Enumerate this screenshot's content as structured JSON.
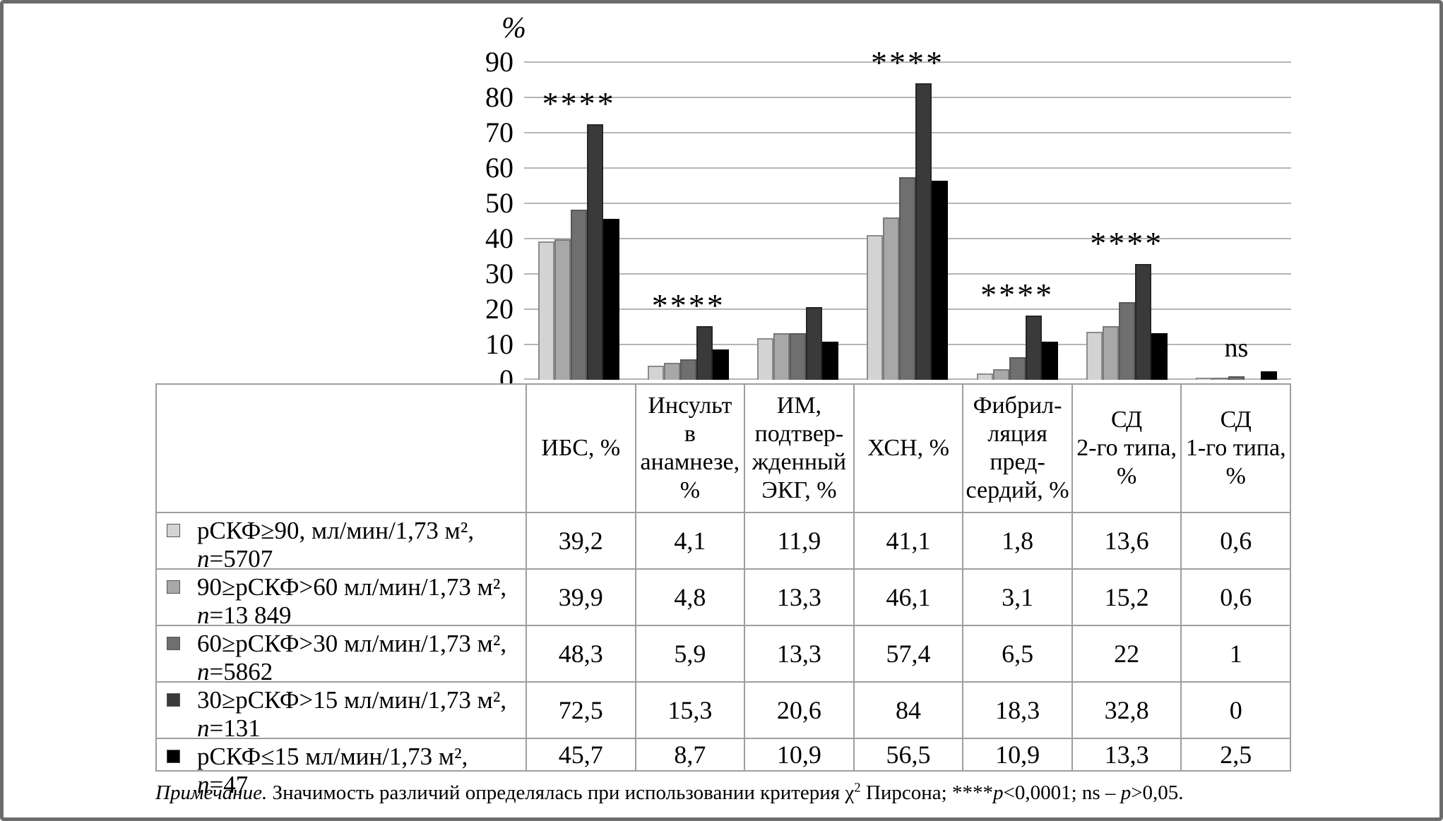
{
  "chart_data": {
    "type": "bar",
    "title": "",
    "ylabel": "%",
    "xlabel": "",
    "ylim": [
      0,
      90
    ],
    "yticks": [
      0,
      10,
      20,
      30,
      40,
      50,
      60,
      70,
      80,
      90
    ],
    "grid": true,
    "legend_position": "table-left",
    "categories": [
      "ИБС, %",
      "Инсульт\nв анамнезе,\n%",
      "ИМ,\nподтвер-\nжденный\nЭКГ, %",
      "ХСН, %",
      "Фибрил-\nляция\nпред-\nсердий, %",
      "СД\n2-го типа, %",
      "СД\n1-го типа, %"
    ],
    "annotations": [
      "****",
      "****",
      "",
      "****",
      "****",
      "****",
      "ns"
    ],
    "series": [
      {
        "name": "рСКФ≥90, мл/мин/1,73 м²,",
        "n_label": "n=5707",
        "two_line": true,
        "color": "#d3d3d3",
        "border": "#8c8c8c",
        "values": [
          39.2,
          4.1,
          11.9,
          41.1,
          1.8,
          13.6,
          0.6
        ]
      },
      {
        "name": "90≥рСКФ>60 мл/мин/1,73 м²,",
        "n_label": "n=13 849",
        "two_line": true,
        "color": "#a8a8a8",
        "border": "#7a7a7a",
        "values": [
          39.9,
          4.8,
          13.3,
          46.1,
          3.1,
          15.2,
          0.6
        ]
      },
      {
        "name": "60≥рСКФ>30 мл/мин/1,73 м²,",
        "n_label": "n=5862",
        "two_line": true,
        "color": "#6f6f6f",
        "border": "#595959",
        "values": [
          48.3,
          5.9,
          13.3,
          57.4,
          6.5,
          22,
          1
        ]
      },
      {
        "name": "30≥рСКФ>15 мл/мин/1,73 м²,",
        "n_label": "n=131",
        "two_line": true,
        "color": "#3a3a3a",
        "border": "#262626",
        "values": [
          72.5,
          15.3,
          20.6,
          84,
          18.3,
          32.8,
          0
        ]
      },
      {
        "name": "рСКФ≤15 мл/мин/1,73 м²,",
        "n_label": "n=47",
        "two_line": false,
        "color": "#000000",
        "border": "#000000",
        "values": [
          45.7,
          8.7,
          10.9,
          56.5,
          10.9,
          13.3,
          2.5
        ]
      }
    ],
    "table_values": [
      [
        "39,2",
        "4,1",
        "11,9",
        "41,1",
        "1,8",
        "13,6",
        "0,6"
      ],
      [
        "39,9",
        "4,8",
        "13,3",
        "46,1",
        "3,1",
        "15,2",
        "0,6"
      ],
      [
        "48,3",
        "5,9",
        "13,3",
        "57,4",
        "6,5",
        "22",
        "1"
      ],
      [
        "72,5",
        "15,3",
        "20,6",
        "84",
        "18,3",
        "32,8",
        "0"
      ],
      [
        "45,7",
        "8,7",
        "10,9",
        "56,5",
        "10,9",
        "13,3",
        "2,5"
      ]
    ]
  },
  "footnote": {
    "segments": [
      {
        "text": "Примечание.",
        "style": "italic"
      },
      {
        "text": " Значимость различий определялась при использовании критерия χ",
        "style": "normal"
      },
      {
        "text": "2",
        "style": "sup"
      },
      {
        "text": " Пирсона; ****",
        "style": "normal"
      },
      {
        "text": "p",
        "style": "italic"
      },
      {
        "text": "<0,0001; ns – ",
        "style": "normal"
      },
      {
        "text": "p",
        "style": "italic"
      },
      {
        "text": ">0,05.",
        "style": "normal"
      }
    ]
  }
}
